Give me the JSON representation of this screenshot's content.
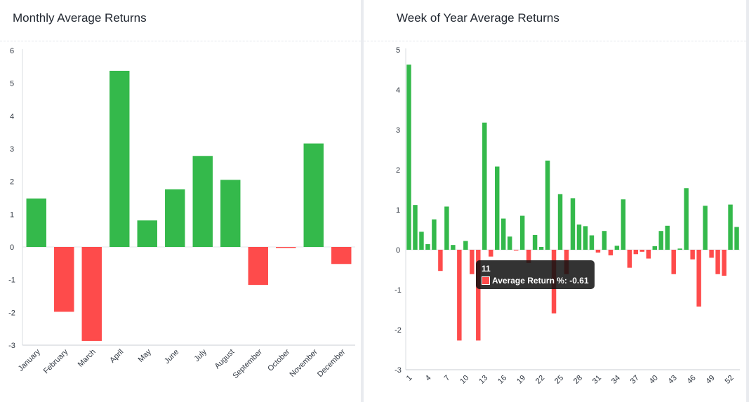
{
  "colors": {
    "positive": "#34b94b",
    "negative": "#fe4b4b"
  },
  "chart_data": [
    {
      "type": "bar",
      "title": "Monthly Average Returns",
      "categories": [
        "January",
        "February",
        "March",
        "April",
        "May",
        "June",
        "July",
        "August",
        "September",
        "October",
        "November",
        "December"
      ],
      "values": [
        1.48,
        -1.98,
        -2.87,
        5.38,
        0.81,
        1.76,
        2.78,
        2.05,
        -1.16,
        -0.03,
        3.16,
        -0.52
      ],
      "ylim": [
        -3,
        6
      ],
      "yticks": [
        "6",
        "5",
        "4",
        "3",
        "2",
        "1",
        "0",
        "-1",
        "-2",
        "-3"
      ],
      "xlabel": "",
      "ylabel": ""
    },
    {
      "type": "bar",
      "title": "Week of Year Average Returns",
      "x": [
        1,
        2,
        3,
        4,
        5,
        6,
        7,
        8,
        9,
        10,
        11,
        12,
        13,
        14,
        15,
        16,
        17,
        18,
        19,
        20,
        21,
        22,
        23,
        24,
        25,
        26,
        27,
        28,
        29,
        30,
        31,
        32,
        33,
        34,
        35,
        36,
        37,
        38,
        39,
        40,
        41,
        42,
        43,
        44,
        45,
        46,
        47,
        48,
        49,
        50,
        51,
        52,
        53
      ],
      "xtick_labels": [
        "1",
        "4",
        "7",
        "10",
        "13",
        "16",
        "19",
        "22",
        "25",
        "28",
        "31",
        "34",
        "37",
        "40",
        "43",
        "46",
        "49",
        "52"
      ],
      "values": [
        4.63,
        1.12,
        0.45,
        0.14,
        0.76,
        -0.53,
        1.08,
        0.12,
        -2.27,
        0.22,
        -0.61,
        -2.27,
        3.18,
        -0.17,
        2.08,
        0.78,
        0.33,
        -0.02,
        0.85,
        -0.33,
        0.37,
        0.07,
        2.23,
        -1.59,
        1.39,
        -0.61,
        1.29,
        0.63,
        0.59,
        0.36,
        -0.07,
        0.47,
        -0.14,
        0.1,
        1.26,
        -0.45,
        -0.11,
        -0.05,
        -0.22,
        0.09,
        0.47,
        0.6,
        -0.61,
        0.03,
        1.54,
        -0.24,
        -1.42,
        1.1,
        -0.2,
        -0.61,
        -0.65,
        1.13,
        0.57
      ],
      "ylim": [
        -3,
        5
      ],
      "yticks": [
        "5",
        "4",
        "3",
        "2",
        "1",
        "0",
        "-1",
        "-2",
        "-3"
      ],
      "xlabel": "",
      "ylabel": "",
      "tooltip": {
        "week": "11",
        "label": "Average Return %: -0.61"
      }
    }
  ]
}
